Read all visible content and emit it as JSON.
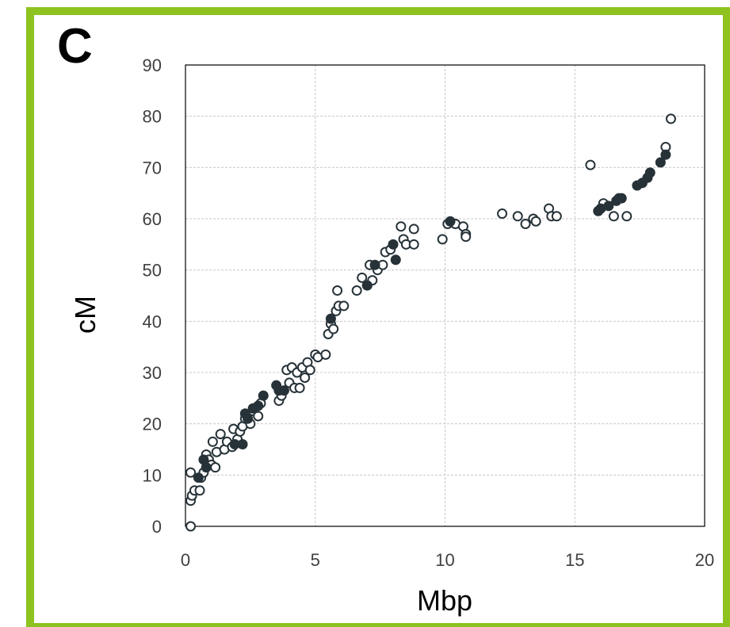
{
  "panel_label": "C",
  "colors": {
    "border": "#8DC21F",
    "filled_marker": "#263238",
    "open_marker_stroke": "#263238",
    "grid": "#c8c8c8"
  },
  "chart_data": {
    "type": "scatter",
    "title": "",
    "xlabel": "Mbp",
    "ylabel": "cM",
    "xlim": [
      0,
      20
    ],
    "ylim": [
      0,
      90
    ],
    "xticks": [
      "0",
      "5",
      "10",
      "15",
      "20"
    ],
    "yticks": [
      "0",
      "10",
      "20",
      "30",
      "40",
      "50",
      "60",
      "70",
      "80",
      "90"
    ],
    "grid": true,
    "series": [
      {
        "marker": "open",
        "points": [
          [
            0.2,
            0
          ],
          [
            0.2,
            5
          ],
          [
            0.25,
            6
          ],
          [
            0.2,
            10.5
          ],
          [
            0.35,
            7
          ],
          [
            0.55,
            7
          ],
          [
            0.6,
            9.5
          ],
          [
            0.7,
            10.5
          ],
          [
            0.8,
            14
          ],
          [
            0.9,
            13
          ],
          [
            1.0,
            12
          ],
          [
            1.05,
            16.5
          ],
          [
            1.15,
            11.5
          ],
          [
            1.2,
            14.5
          ],
          [
            1.35,
            18
          ],
          [
            1.5,
            15
          ],
          [
            1.6,
            16.5
          ],
          [
            1.8,
            15.5
          ],
          [
            1.85,
            19
          ],
          [
            2.0,
            17
          ],
          [
            2.1,
            18.5
          ],
          [
            2.2,
            19.5
          ],
          [
            2.3,
            21
          ],
          [
            2.5,
            20
          ],
          [
            2.6,
            22.5
          ],
          [
            2.8,
            21.5
          ],
          [
            2.9,
            24
          ],
          [
            3.6,
            24.5
          ],
          [
            3.7,
            25.5
          ],
          [
            3.9,
            30.5
          ],
          [
            4.0,
            28
          ],
          [
            4.1,
            31
          ],
          [
            4.2,
            27
          ],
          [
            4.3,
            30
          ],
          [
            4.4,
            27
          ],
          [
            4.5,
            31
          ],
          [
            4.6,
            29
          ],
          [
            4.7,
            32
          ],
          [
            4.8,
            30.5
          ],
          [
            5.0,
            33.5
          ],
          [
            5.1,
            33
          ],
          [
            5.4,
            33.5
          ],
          [
            5.5,
            37.5
          ],
          [
            5.6,
            39.5
          ],
          [
            5.7,
            38.5
          ],
          [
            5.8,
            42
          ],
          [
            5.85,
            46
          ],
          [
            5.9,
            43
          ],
          [
            6.1,
            43
          ],
          [
            6.6,
            46
          ],
          [
            6.8,
            48.5
          ],
          [
            7.0,
            47
          ],
          [
            7.1,
            51
          ],
          [
            7.2,
            48
          ],
          [
            7.4,
            50
          ],
          [
            7.6,
            51
          ],
          [
            7.7,
            53.5
          ],
          [
            7.9,
            54
          ],
          [
            8.3,
            58.5
          ],
          [
            8.4,
            56
          ],
          [
            8.5,
            55
          ],
          [
            8.8,
            55
          ],
          [
            8.8,
            58
          ],
          [
            9.9,
            56
          ],
          [
            10.1,
            59
          ],
          [
            10.4,
            59
          ],
          [
            10.7,
            58.5
          ],
          [
            10.8,
            57
          ],
          [
            10.8,
            56.5
          ],
          [
            12.2,
            61
          ],
          [
            12.8,
            60.5
          ],
          [
            13.1,
            59
          ],
          [
            13.4,
            60
          ],
          [
            13.5,
            59.5
          ],
          [
            14.0,
            62
          ],
          [
            14.1,
            60.5
          ],
          [
            14.3,
            60.5
          ],
          [
            15.6,
            70.5
          ],
          [
            16.1,
            63
          ],
          [
            16.5,
            60.5
          ],
          [
            17.0,
            60.5
          ],
          [
            18.5,
            74
          ],
          [
            18.7,
            79.5
          ]
        ]
      },
      {
        "marker": "filled",
        "points": [
          [
            0.5,
            9.5
          ],
          [
            0.7,
            13
          ],
          [
            0.8,
            11.5
          ],
          [
            1.9,
            16
          ],
          [
            2.2,
            16
          ],
          [
            2.3,
            22
          ],
          [
            2.4,
            21
          ],
          [
            2.6,
            23
          ],
          [
            2.8,
            23.5
          ],
          [
            3.0,
            25.5
          ],
          [
            3.5,
            27.5
          ],
          [
            3.6,
            26.5
          ],
          [
            3.8,
            26.5
          ],
          [
            5.6,
            40.5
          ],
          [
            7.0,
            47
          ],
          [
            7.3,
            51
          ],
          [
            8.0,
            55
          ],
          [
            8.1,
            52
          ],
          [
            10.2,
            59.5
          ],
          [
            15.9,
            61.5
          ],
          [
            16.0,
            62
          ],
          [
            16.3,
            62.5
          ],
          [
            16.6,
            63.5
          ],
          [
            16.7,
            64
          ],
          [
            16.8,
            64
          ],
          [
            17.4,
            66.5
          ],
          [
            17.6,
            67
          ],
          [
            17.8,
            68
          ],
          [
            17.9,
            69
          ],
          [
            18.3,
            71
          ],
          [
            18.5,
            72.5
          ]
        ]
      }
    ]
  }
}
